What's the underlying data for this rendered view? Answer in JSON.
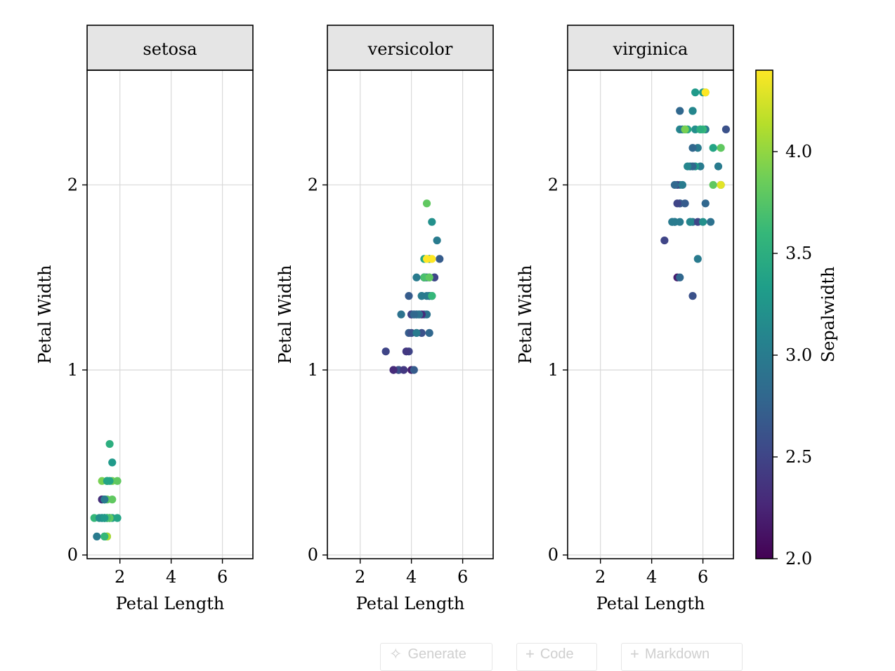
{
  "chart_data": {
    "type": "scatter",
    "facet_by": "species",
    "x": "Petal Length",
    "y": "Petal Width",
    "color": "Sepalwidth",
    "xlabel": "Petal Length",
    "ylabel": "Petal Width",
    "xlim": [
      0.72,
      7.19
    ],
    "ylim": [
      -0.02,
      2.62
    ],
    "xticks": [
      "2",
      "4",
      "6"
    ],
    "yticks": [
      "0",
      "1",
      "2"
    ],
    "grid": true,
    "colorbar": {
      "label": "Sepalwidth",
      "range": [
        2.0,
        4.4
      ],
      "ticks": [
        "2.0",
        "2.5",
        "3.0",
        "3.5",
        "4.0"
      ],
      "colormap": "viridis",
      "colors": [
        "#440154",
        "#482878",
        "#3e4989",
        "#31688e",
        "#26828e",
        "#1f9e89",
        "#35b779",
        "#6ece58",
        "#b5de2b",
        "#fde725"
      ]
    },
    "panels": [
      {
        "title": "setosa",
        "points": [
          [
            1.4,
            0.2,
            3.5
          ],
          [
            1.4,
            0.2,
            3.0
          ],
          [
            1.3,
            0.2,
            3.2
          ],
          [
            1.5,
            0.2,
            3.1
          ],
          [
            1.4,
            0.2,
            3.6
          ],
          [
            1.7,
            0.4,
            3.9
          ],
          [
            1.4,
            0.3,
            3.4
          ],
          [
            1.5,
            0.2,
            3.4
          ],
          [
            1.4,
            0.2,
            2.9
          ],
          [
            1.5,
            0.1,
            3.1
          ],
          [
            1.5,
            0.2,
            3.7
          ],
          [
            1.6,
            0.2,
            3.4
          ],
          [
            1.4,
            0.1,
            3.0
          ],
          [
            1.1,
            0.1,
            3.0
          ],
          [
            1.2,
            0.2,
            4.0
          ],
          [
            1.5,
            0.4,
            4.4
          ],
          [
            1.3,
            0.4,
            3.9
          ],
          [
            1.4,
            0.3,
            3.5
          ],
          [
            1.7,
            0.3,
            3.8
          ],
          [
            1.5,
            0.3,
            3.8
          ],
          [
            1.7,
            0.2,
            3.4
          ],
          [
            1.5,
            0.4,
            3.7
          ],
          [
            1.0,
            0.2,
            3.6
          ],
          [
            1.7,
            0.5,
            3.3
          ],
          [
            1.9,
            0.2,
            3.4
          ],
          [
            1.6,
            0.2,
            3.0
          ],
          [
            1.6,
            0.4,
            3.4
          ],
          [
            1.5,
            0.2,
            3.5
          ],
          [
            1.4,
            0.2,
            3.4
          ],
          [
            1.6,
            0.2,
            3.2
          ],
          [
            1.6,
            0.2,
            3.1
          ],
          [
            1.5,
            0.4,
            3.4
          ],
          [
            1.5,
            0.1,
            4.1
          ],
          [
            1.4,
            0.2,
            4.2
          ],
          [
            1.5,
            0.2,
            3.1
          ],
          [
            1.2,
            0.2,
            3.2
          ],
          [
            1.3,
            0.2,
            3.5
          ],
          [
            1.4,
            0.1,
            3.6
          ],
          [
            1.3,
            0.2,
            3.0
          ],
          [
            1.5,
            0.2,
            3.4
          ],
          [
            1.3,
            0.3,
            3.5
          ],
          [
            1.3,
            0.3,
            2.3
          ],
          [
            1.3,
            0.2,
            3.2
          ],
          [
            1.6,
            0.6,
            3.5
          ],
          [
            1.9,
            0.4,
            3.8
          ],
          [
            1.4,
            0.3,
            3.0
          ],
          [
            1.6,
            0.2,
            3.8
          ],
          [
            1.4,
            0.2,
            3.2
          ],
          [
            1.5,
            0.2,
            3.7
          ],
          [
            1.4,
            0.2,
            3.3
          ]
        ]
      },
      {
        "title": "versicolor",
        "points": [
          [
            4.7,
            1.4,
            3.2
          ],
          [
            4.5,
            1.5,
            3.2
          ],
          [
            4.9,
            1.5,
            3.1
          ],
          [
            4.0,
            1.3,
            2.3
          ],
          [
            4.6,
            1.5,
            2.8
          ],
          [
            4.5,
            1.3,
            2.8
          ],
          [
            4.7,
            1.6,
            3.3
          ],
          [
            3.3,
            1.0,
            2.4
          ],
          [
            4.6,
            1.3,
            2.9
          ],
          [
            3.9,
            1.4,
            2.7
          ],
          [
            3.5,
            1.0,
            2.0
          ],
          [
            4.2,
            1.5,
            3.0
          ],
          [
            4.0,
            1.0,
            2.2
          ],
          [
            4.7,
            1.4,
            2.9
          ],
          [
            3.6,
            1.3,
            2.9
          ],
          [
            4.4,
            1.4,
            3.1
          ],
          [
            4.5,
            1.5,
            3.0
          ],
          [
            4.1,
            1.0,
            2.7
          ],
          [
            4.5,
            1.5,
            2.2
          ],
          [
            3.9,
            1.1,
            2.5
          ],
          [
            4.8,
            1.8,
            3.2
          ],
          [
            4.0,
            1.3,
            2.8
          ],
          [
            4.9,
            1.5,
            2.5
          ],
          [
            4.7,
            1.2,
            2.8
          ],
          [
            4.3,
            1.3,
            2.9
          ],
          [
            4.4,
            1.4,
            3.0
          ],
          [
            4.8,
            1.4,
            2.8
          ],
          [
            5.0,
            1.7,
            3.0
          ],
          [
            4.5,
            1.5,
            2.9
          ],
          [
            3.5,
            1.0,
            2.6
          ],
          [
            3.8,
            1.1,
            2.4
          ],
          [
            3.7,
            1.0,
            2.4
          ],
          [
            3.9,
            1.2,
            2.7
          ],
          [
            5.1,
            1.6,
            2.7
          ],
          [
            4.5,
            1.5,
            3.0
          ],
          [
            4.5,
            1.6,
            3.4
          ],
          [
            4.7,
            1.5,
            3.1
          ],
          [
            4.4,
            1.3,
            2.3
          ],
          [
            4.1,
            1.3,
            3.0
          ],
          [
            4.0,
            1.3,
            2.5
          ],
          [
            4.4,
            1.2,
            2.6
          ],
          [
            4.6,
            1.4,
            3.0
          ],
          [
            4.0,
            1.2,
            2.6
          ],
          [
            3.3,
            1.0,
            2.3
          ],
          [
            4.2,
            1.3,
            2.7
          ],
          [
            4.2,
            1.2,
            3.0
          ],
          [
            4.2,
            1.3,
            2.9
          ],
          [
            4.3,
            1.3,
            2.9
          ],
          [
            3.0,
            1.1,
            2.5
          ],
          [
            4.1,
            1.3,
            2.8
          ],
          [
            4.8,
            1.6,
            4.4
          ],
          [
            4.6,
            1.6,
            4.4
          ],
          [
            4.6,
            1.9,
            3.8
          ],
          [
            4.5,
            1.5,
            3.7
          ],
          [
            4.7,
            1.5,
            3.8
          ],
          [
            4.8,
            1.4,
            3.6
          ]
        ]
      },
      {
        "title": "virginica",
        "points": [
          [
            6.0,
            2.5,
            3.3
          ],
          [
            5.1,
            1.9,
            2.7
          ],
          [
            5.9,
            2.1,
            3.0
          ],
          [
            5.6,
            1.8,
            2.9
          ],
          [
            5.8,
            2.2,
            3.0
          ],
          [
            6.6,
            2.1,
            3.0
          ],
          [
            4.5,
            1.7,
            2.5
          ],
          [
            6.3,
            1.8,
            2.9
          ],
          [
            5.8,
            1.8,
            2.5
          ],
          [
            6.1,
            2.5,
            3.6
          ],
          [
            5.1,
            2.0,
            3.2
          ],
          [
            5.3,
            1.9,
            2.7
          ],
          [
            5.5,
            2.1,
            3.0
          ],
          [
            5.0,
            2.0,
            2.5
          ],
          [
            5.1,
            2.4,
            2.8
          ],
          [
            5.3,
            2.3,
            3.2
          ],
          [
            5.5,
            1.8,
            3.0
          ],
          [
            6.7,
            2.2,
            3.8
          ],
          [
            6.9,
            2.3,
            2.6
          ],
          [
            5.0,
            1.5,
            2.2
          ],
          [
            5.7,
            2.3,
            3.2
          ],
          [
            4.9,
            2.0,
            2.8
          ],
          [
            6.7,
            2.0,
            2.8
          ],
          [
            4.9,
            1.8,
            2.7
          ],
          [
            5.7,
            2.1,
            3.3
          ],
          [
            6.0,
            1.8,
            3.2
          ],
          [
            4.8,
            1.8,
            2.8
          ],
          [
            4.9,
            1.8,
            3.0
          ],
          [
            5.6,
            2.1,
            2.8
          ],
          [
            5.8,
            1.6,
            3.0
          ],
          [
            6.1,
            1.9,
            2.8
          ],
          [
            6.4,
            2.0,
            3.8
          ],
          [
            5.6,
            2.2,
            2.8
          ],
          [
            5.1,
            1.5,
            2.8
          ],
          [
            5.6,
            1.4,
            2.6
          ],
          [
            6.1,
            2.3,
            3.0
          ],
          [
            5.6,
            2.4,
            3.4
          ],
          [
            5.5,
            1.8,
            3.1
          ],
          [
            4.8,
            1.8,
            3.0
          ],
          [
            5.4,
            2.1,
            3.1
          ],
          [
            5.6,
            2.4,
            3.1
          ],
          [
            5.1,
            2.3,
            3.1
          ],
          [
            5.1,
            1.9,
            2.7
          ],
          [
            5.9,
            2.3,
            3.2
          ],
          [
            5.7,
            2.5,
            3.3
          ],
          [
            5.2,
            2.3,
            3.0
          ],
          [
            5.0,
            1.9,
            2.5
          ],
          [
            5.2,
            2.0,
            3.0
          ],
          [
            5.4,
            2.3,
            3.4
          ],
          [
            5.1,
            1.8,
            3.0
          ],
          [
            6.1,
            2.5,
            4.4
          ],
          [
            6.0,
            2.3,
            3.6
          ],
          [
            5.9,
            2.3,
            3.5
          ],
          [
            5.3,
            2.3,
            3.9
          ],
          [
            6.7,
            2.0,
            4.3
          ],
          [
            6.4,
            2.2,
            3.4
          ]
        ]
      }
    ]
  },
  "notebook_toolbar": {
    "generate_label": "Generate",
    "code_label": "Code",
    "markdown_label": "Markdown"
  }
}
